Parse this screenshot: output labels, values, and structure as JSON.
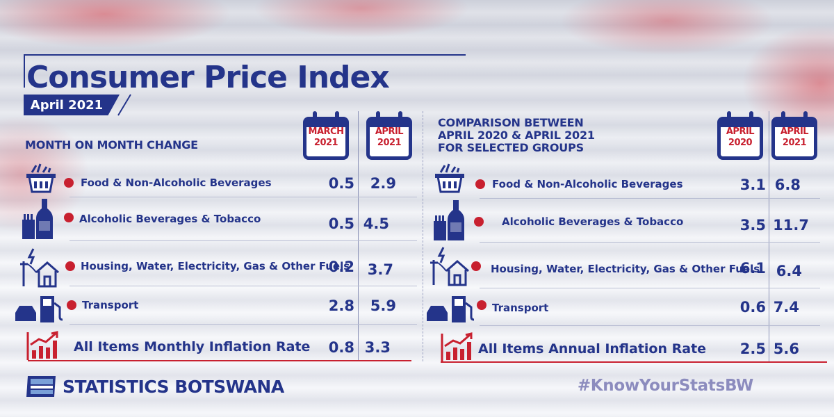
{
  "title": "Consumer Price Index",
  "period": "April 2021",
  "left_panel": {
    "heading": "MONTH ON MONTH CHANGE",
    "col1": {
      "month": "MARCH",
      "year": "2021"
    },
    "col2": {
      "month": "APRIL",
      "year": "2021"
    },
    "rows": [
      {
        "label": "Food & Non-Alcoholic Beverages",
        "v1": "0.5",
        "v2": "2.9",
        "icon": "basket-icon"
      },
      {
        "label": "Alcoholic Beverages & Tobacco",
        "v1": "0.5",
        "v2": "4.5",
        "icon": "bottle-cigarettes-icon"
      },
      {
        "label": "Housing, Water, Electricity, Gas & Other Fuels",
        "v1": "0.2",
        "v2": "3.7",
        "icon": "house-power-icon"
      },
      {
        "label": "Transport",
        "v1": "2.8",
        "v2": "5.9",
        "icon": "car-fuel-pump-icon"
      }
    ],
    "total": {
      "label": "All Items Monthly Inflation Rate",
      "v1": "0.8",
      "v2": "3.3",
      "icon": "rising-chart-icon"
    }
  },
  "right_panel": {
    "heading_line1": "COMPARISON BETWEEN",
    "heading_line2": "APRIL 2020 & APRIL 2021",
    "heading_line3": "FOR SELECTED GROUPS",
    "col1": {
      "month": "APRIL",
      "year": "2020"
    },
    "col2": {
      "month": "APRIL",
      "year": "2021"
    },
    "rows": [
      {
        "label": "Food & Non-Alcoholic Beverages",
        "v1": "3.1",
        "v2": "6.8",
        "icon": "basket-icon"
      },
      {
        "label": "Alcoholic Beverages & Tobacco",
        "v1": "3.5",
        "v2": "11.7",
        "icon": "bottle-cigarettes-icon"
      },
      {
        "label": "Housing, Water, Electricity, Gas & Other Fuels",
        "v1": "6.1",
        "v2": "6.4",
        "icon": "house-power-icon"
      },
      {
        "label": "Transport",
        "v1": "0.6",
        "v2": "7.4",
        "icon": "car-fuel-pump-icon"
      }
    ],
    "total": {
      "label": "All Items Annual Inflation Rate",
      "v1": "2.5",
      "v2": "5.6",
      "icon": "rising-chart-icon"
    }
  },
  "footer": {
    "brand": "STATISTICS BOTSWANA",
    "hashtag": "#KnowYourStatsBW"
  },
  "colors": {
    "navy": "#24348a",
    "red": "#c8202f",
    "hashtag": "#8c8cbe"
  }
}
